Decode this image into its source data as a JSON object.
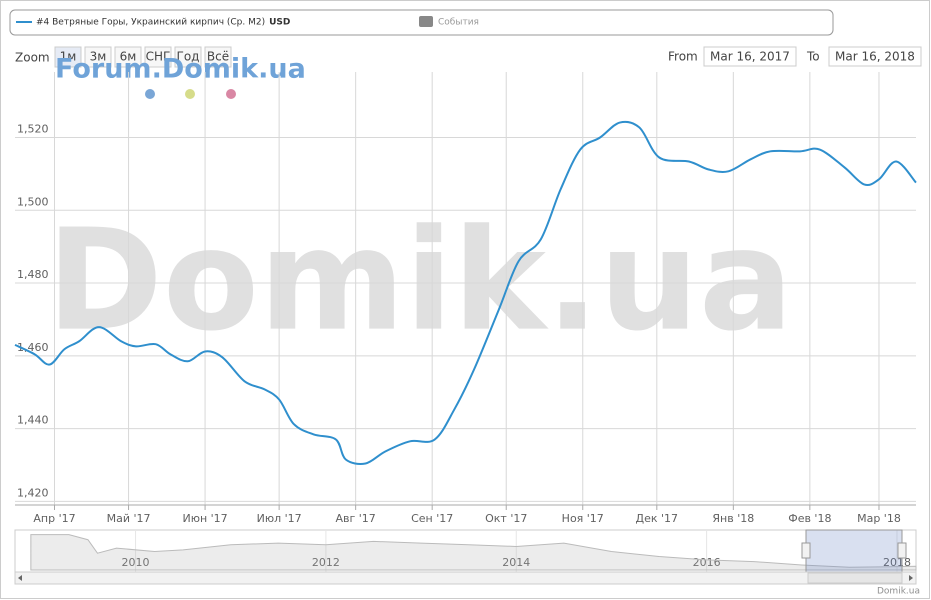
{
  "chart_data": {
    "type": "line",
    "watermark": "Forum.Domik.ua",
    "background_text": "Domik.ua",
    "credits": "Domik.ua",
    "legend": {
      "unit": "USD",
      "events": "События",
      "events_color": "#888888"
    },
    "range_selector": {
      "zoom_label": "Zoom",
      "buttons": [
        "1м",
        "3м",
        "6м",
        "СНГ",
        "Год",
        "Всё"
      ],
      "from_label": "From",
      "from": "Mar 16, 2017",
      "to_label": "To",
      "to": "Mar 16, 2018"
    },
    "x": [
      "2017-03-16",
      "2017-03-24",
      "2017-03-30",
      "2017-04-05",
      "2017-04-11",
      "2017-04-19",
      "2017-04-28",
      "2017-05-04",
      "2017-05-12",
      "2017-05-18",
      "2017-05-25",
      "2017-06-01",
      "2017-06-08",
      "2017-06-17",
      "2017-06-25",
      "2017-07-01",
      "2017-07-07",
      "2017-07-15",
      "2017-07-24",
      "2017-07-28",
      "2017-08-05",
      "2017-08-13",
      "2017-08-23",
      "2017-09-02",
      "2017-09-10",
      "2017-09-18",
      "2017-09-28",
      "2017-10-06",
      "2017-10-15",
      "2017-10-23",
      "2017-10-31",
      "2017-11-08",
      "2017-11-16",
      "2017-11-24",
      "2017-12-02",
      "2017-12-14",
      "2017-12-22",
      "2017-12-30",
      "2018-01-08",
      "2018-01-16",
      "2018-01-28",
      "2018-02-05",
      "2018-02-15",
      "2018-02-23",
      "2018-03-01",
      "2018-03-08",
      "2018-03-16"
    ],
    "series": [
      {
        "name": "#4 Ветряные Горы, Украинский кирпич (Ср. M2)",
        "color": "#2f8fcd",
        "values": [
          1463,
          1460.4,
          1457.6,
          1461.8,
          1464,
          1467.9,
          1464,
          1462.6,
          1463.2,
          1460.4,
          1458.5,
          1461.2,
          1459.6,
          1453,
          1450.8,
          1448,
          1441.2,
          1438.4,
          1437,
          1431.5,
          1430.4,
          1433.7,
          1436.5,
          1437,
          1445.3,
          1456.3,
          1472.7,
          1486,
          1492,
          1505.7,
          1516.7,
          1520,
          1524.1,
          1522.7,
          1514.5,
          1513.4,
          1511.2,
          1510.7,
          1514,
          1516.2,
          1516.2,
          1516.7,
          1511.8,
          1507.1,
          1508.5,
          1513.4,
          1507.6
        ]
      }
    ],
    "xlim": [
      "2017-03-16",
      "2018-03-16"
    ],
    "xticks": [
      {
        "value": "2017-04-01",
        "label": "Апр '17"
      },
      {
        "value": "2017-05-01",
        "label": "Май '17"
      },
      {
        "value": "2017-06-01",
        "label": "Июн '17"
      },
      {
        "value": "2017-07-01",
        "label": "Июл '17"
      },
      {
        "value": "2017-08-01",
        "label": "Авг '17"
      },
      {
        "value": "2017-09-01",
        "label": "Сен '17"
      },
      {
        "value": "2017-10-01",
        "label": "Окт '17"
      },
      {
        "value": "2017-11-01",
        "label": "Ноя '17"
      },
      {
        "value": "2017-12-01",
        "label": "Дек '17"
      },
      {
        "value": "2018-01-01",
        "label": "Янв '18"
      },
      {
        "value": "2018-02-01",
        "label": "Фев '18"
      },
      {
        "value": "2018-03-01",
        "label": "Мар '18"
      }
    ],
    "ylim": [
      1419,
      1538
    ],
    "yticks": [
      {
        "value": 1420,
        "label": "1,420"
      },
      {
        "value": 1440,
        "label": "1,440"
      },
      {
        "value": 1460,
        "label": "1,460"
      },
      {
        "value": 1480,
        "label": "1,480"
      },
      {
        "value": 1500,
        "label": "1,500"
      },
      {
        "value": 1520,
        "label": "1,520"
      }
    ],
    "grid": true,
    "navigator": {
      "x": [
        2008.9,
        2009.3,
        2009.5,
        2009.6,
        2009.8,
        2010.2,
        2010.5,
        2011.0,
        2011.5,
        2012.0,
        2012.5,
        2013.0,
        2013.5,
        2014.0,
        2014.5,
        2015.0,
        2015.5,
        2016.0,
        2016.5,
        2017.0,
        2017.5,
        2018.2
      ],
      "values": [
        2450,
        2450,
        2300,
        1900,
        2050,
        1950,
        2000,
        2150,
        2200,
        2150,
        2250,
        2200,
        2150,
        2100,
        2200,
        1950,
        1800,
        1700,
        1650,
        1550,
        1480,
        1510
      ],
      "xlim": [
        2008.87,
        2018.2
      ],
      "ylim": [
        1400,
        2500
      ],
      "xticks": [
        2010,
        2012,
        2014,
        2016,
        2018
      ]
    }
  }
}
